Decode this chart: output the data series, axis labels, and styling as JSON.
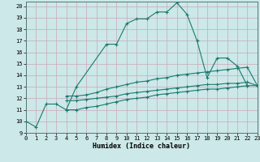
{
  "xlabel": "Humidex (Indice chaleur)",
  "bg_color": "#cce8e8",
  "line_color": "#1a7a6e",
  "grid_color": "#c8a8b8",
  "xlim": [
    0,
    23
  ],
  "ylim": [
    9,
    20.4
  ],
  "xticks": [
    0,
    1,
    2,
    3,
    4,
    5,
    6,
    7,
    8,
    9,
    10,
    11,
    12,
    13,
    14,
    15,
    16,
    17,
    18,
    19,
    20,
    21,
    22,
    23
  ],
  "yticks": [
    9,
    10,
    11,
    12,
    13,
    14,
    15,
    16,
    17,
    18,
    19,
    20
  ],
  "series": [
    {
      "x": [
        0,
        1,
        2,
        3,
        4,
        5,
        8,
        9,
        10,
        11,
        12,
        13,
        14,
        15,
        16,
        17,
        18,
        19,
        20,
        21,
        22
      ],
      "y": [
        10.0,
        9.5,
        11.5,
        11.5,
        11.0,
        13.0,
        16.7,
        16.7,
        18.5,
        18.9,
        18.9,
        19.5,
        19.5,
        20.3,
        19.3,
        17.0,
        13.8,
        15.5,
        15.5,
        14.8,
        13.1
      ]
    },
    {
      "x": [
        4,
        5,
        6,
        7,
        8,
        9,
        10,
        11,
        12,
        13,
        14,
        15,
        16,
        17,
        18,
        19,
        20,
        21,
        22,
        23
      ],
      "y": [
        12.2,
        12.2,
        12.3,
        12.5,
        12.8,
        13.0,
        13.2,
        13.4,
        13.5,
        13.7,
        13.8,
        14.0,
        14.1,
        14.2,
        14.3,
        14.4,
        14.5,
        14.6,
        14.7,
        13.1
      ]
    },
    {
      "x": [
        4,
        5,
        6,
        7,
        8,
        9,
        10,
        11,
        12,
        13,
        14,
        15,
        16,
        17,
        18,
        19,
        20,
        21,
        22,
        23
      ],
      "y": [
        11.8,
        11.8,
        11.9,
        12.0,
        12.1,
        12.2,
        12.4,
        12.5,
        12.6,
        12.7,
        12.8,
        12.9,
        13.0,
        13.1,
        13.2,
        13.2,
        13.3,
        13.3,
        13.4,
        13.1
      ]
    },
    {
      "x": [
        4,
        5,
        6,
        7,
        8,
        9,
        10,
        11,
        12,
        13,
        14,
        15,
        16,
        17,
        18,
        19,
        20,
        21,
        22,
        23
      ],
      "y": [
        11.0,
        11.0,
        11.2,
        11.3,
        11.5,
        11.7,
        11.9,
        12.0,
        12.1,
        12.3,
        12.4,
        12.5,
        12.6,
        12.7,
        12.8,
        12.8,
        12.9,
        13.0,
        13.1,
        13.1
      ]
    }
  ]
}
